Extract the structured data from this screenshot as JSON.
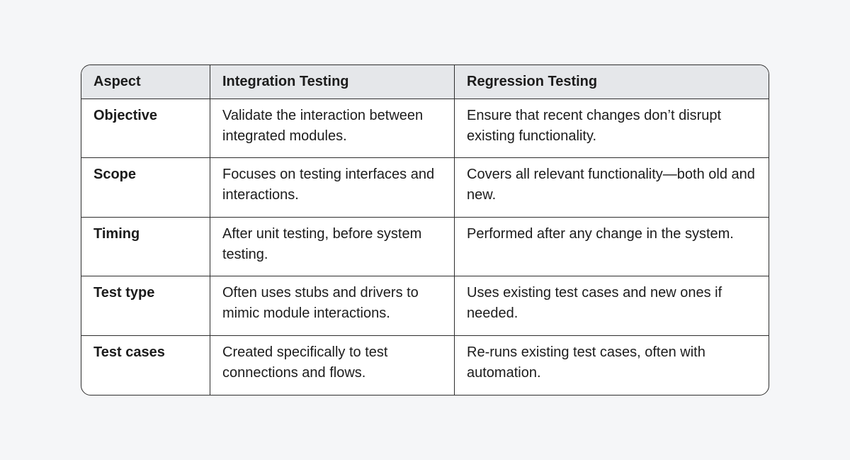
{
  "table": {
    "header": [
      "Aspect",
      "Integration Testing",
      "Regression Testing"
    ],
    "rows": [
      [
        "Objective",
        "Validate the interaction between integrated modules.",
        "Ensure that recent changes don’t disrupt existing functionality."
      ],
      [
        "Scope",
        "Focuses on testing interfaces and interactions.",
        "Covers all relevant functionality—both old and new."
      ],
      [
        "Timing",
        "After unit testing, before system testing.",
        "Performed after any change in the system."
      ],
      [
        "Test type",
        "Often uses stubs and drivers to mimic module interactions.",
        "Uses existing test cases and new ones if needed."
      ],
      [
        "Test cases",
        "Created specifically to test connections and flows.",
        "Re-runs existing test cases, often with automation."
      ]
    ]
  }
}
